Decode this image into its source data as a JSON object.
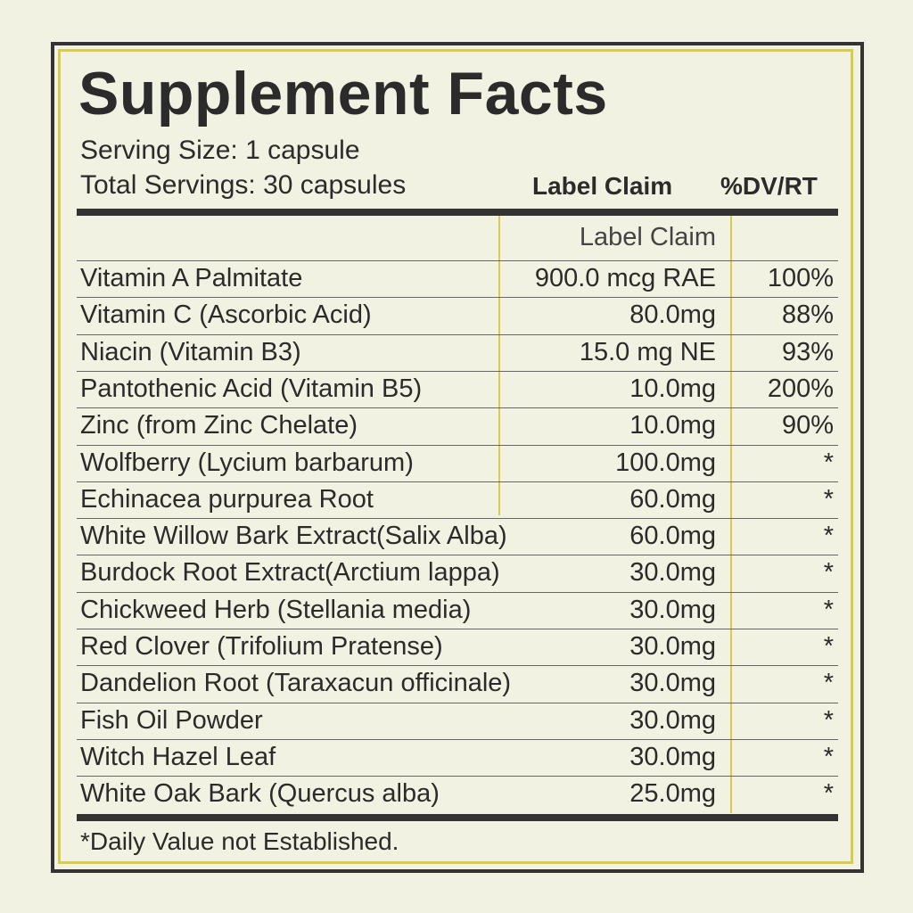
{
  "header": {
    "title": "Supplement Facts",
    "serving_size": "Serving Size: 1 capsule",
    "total_servings": "Total Servings: 30 capsules",
    "col_amount": "Label Claim",
    "col_dv": "%DV/RT"
  },
  "table": {
    "subheader_amount": "Label Claim",
    "rows": [
      {
        "name": "Vitamin A Palmitate",
        "amount": "900.0 mcg RAE",
        "dv": "100%"
      },
      {
        "name": "Vitamin C (Ascorbic Acid)",
        "amount": "80.0mg",
        "dv": "88%"
      },
      {
        "name": "Niacin (Vitamin B3)",
        "amount": "15.0 mg NE",
        "dv": "93%"
      },
      {
        "name": "Pantothenic Acid (Vitamin B5)",
        "amount": "10.0mg",
        "dv": "200%"
      },
      {
        "name": "Zinc (from Zinc Chelate)",
        "amount": "10.0mg",
        "dv": "90%"
      },
      {
        "name": "Wolfberry (Lycium barbarum)",
        "amount": "100.0mg",
        "dv": "*"
      },
      {
        "name": "Echinacea purpurea Root",
        "amount": "60.0mg",
        "dv": "*"
      },
      {
        "name": "White Willow Bark Extract(Salix Alba)",
        "amount": "60.0mg",
        "dv": "*"
      },
      {
        "name": "Burdock Root Extract(Arctium lappa)",
        "amount": "30.0mg",
        "dv": "*"
      },
      {
        "name": "Chickweed Herb (Stellania media)",
        "amount": "30.0mg",
        "dv": "*"
      },
      {
        "name": "Red Clover (Trifolium Pratense)",
        "amount": "30.0mg",
        "dv": "*"
      },
      {
        "name": "Dandelion Root (Taraxacun officinale)",
        "amount": "30.0mg",
        "dv": "*"
      },
      {
        "name": "Fish Oil Powder",
        "amount": "30.0mg",
        "dv": "*"
      },
      {
        "name": "Witch Hazel Leaf",
        "amount": "30.0mg",
        "dv": "*"
      },
      {
        "name": "White Oak Bark (Quercus alba)",
        "amount": "25.0mg",
        "dv": "*"
      }
    ]
  },
  "footnote": "*Daily Value not Established."
}
